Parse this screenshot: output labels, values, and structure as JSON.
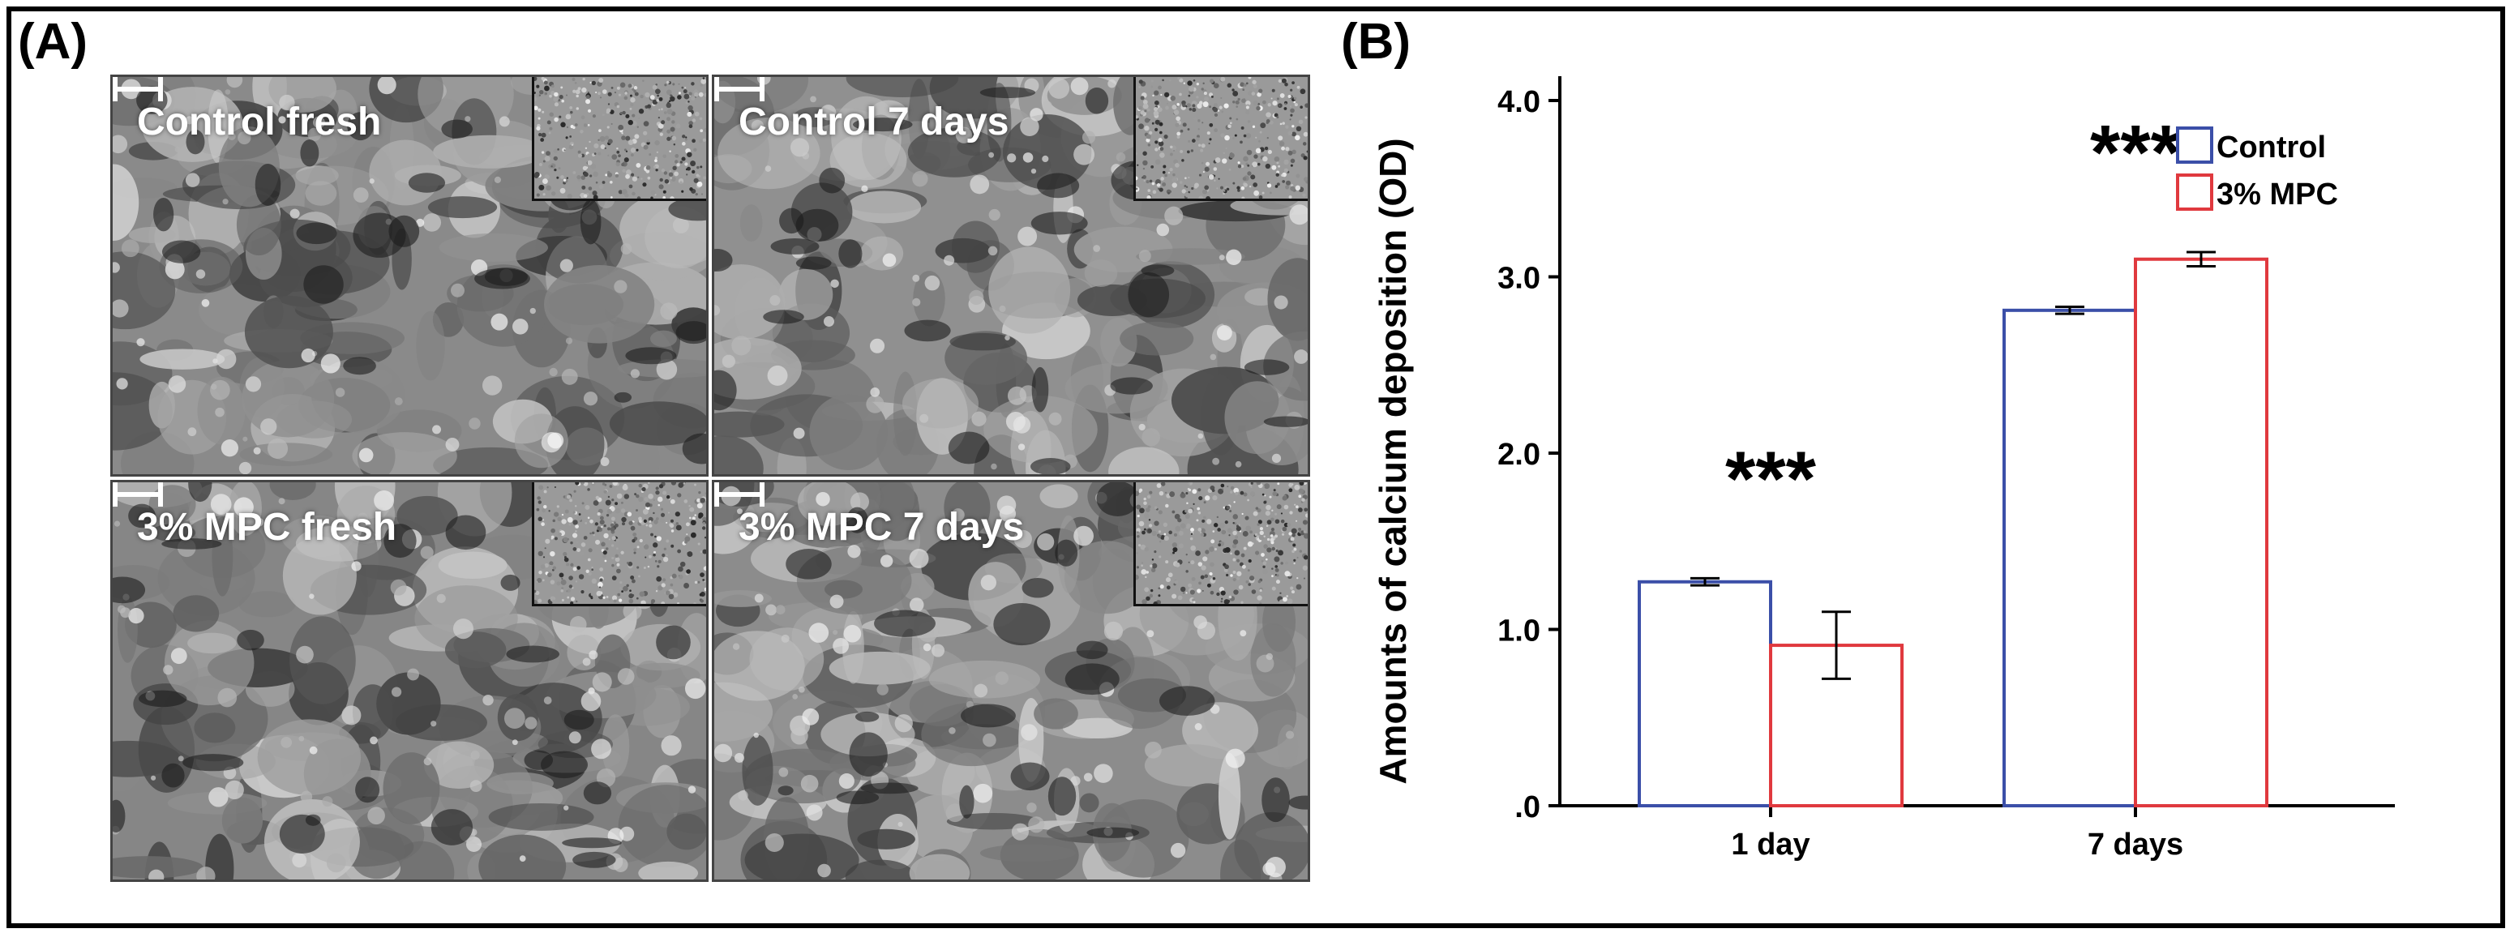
{
  "panels": {
    "a_label": "(A)",
    "b_label": "(B)"
  },
  "micrographs": [
    {
      "label": "Control fresh",
      "tone": "#8a8a8a"
    },
    {
      "label": "Control 7 days",
      "tone": "#909090"
    },
    {
      "label": "3% MPC fresh",
      "tone": "#868686"
    },
    {
      "label": "3% MPC 7 days",
      "tone": "#8c8c8c"
    }
  ],
  "chart_data": {
    "type": "bar",
    "categories": [
      "1 day",
      "7 days"
    ],
    "series": [
      {
        "name": "Control",
        "color": "#3b4fa8",
        "values": [
          1.27,
          2.81
        ],
        "errors": [
          0.02,
          0.02
        ]
      },
      {
        "name": "3% MPC",
        "color": "#e0393e",
        "values": [
          0.91,
          3.1
        ],
        "errors": [
          0.19,
          0.04
        ]
      }
    ],
    "ylabel": "Amounts of calcium deposition (OD)",
    "ylim": [
      0,
      4.0
    ],
    "yticks": [
      {
        "value": 0,
        "label": ".0"
      },
      {
        "value": 1,
        "label": "1.0"
      },
      {
        "value": 2,
        "label": "2.0"
      },
      {
        "value": 3,
        "label": "3.0"
      },
      {
        "value": 4,
        "label": "4.0"
      }
    ],
    "annotations": [
      "***",
      "***"
    ],
    "legend_position": "top-right",
    "grid": false
  }
}
